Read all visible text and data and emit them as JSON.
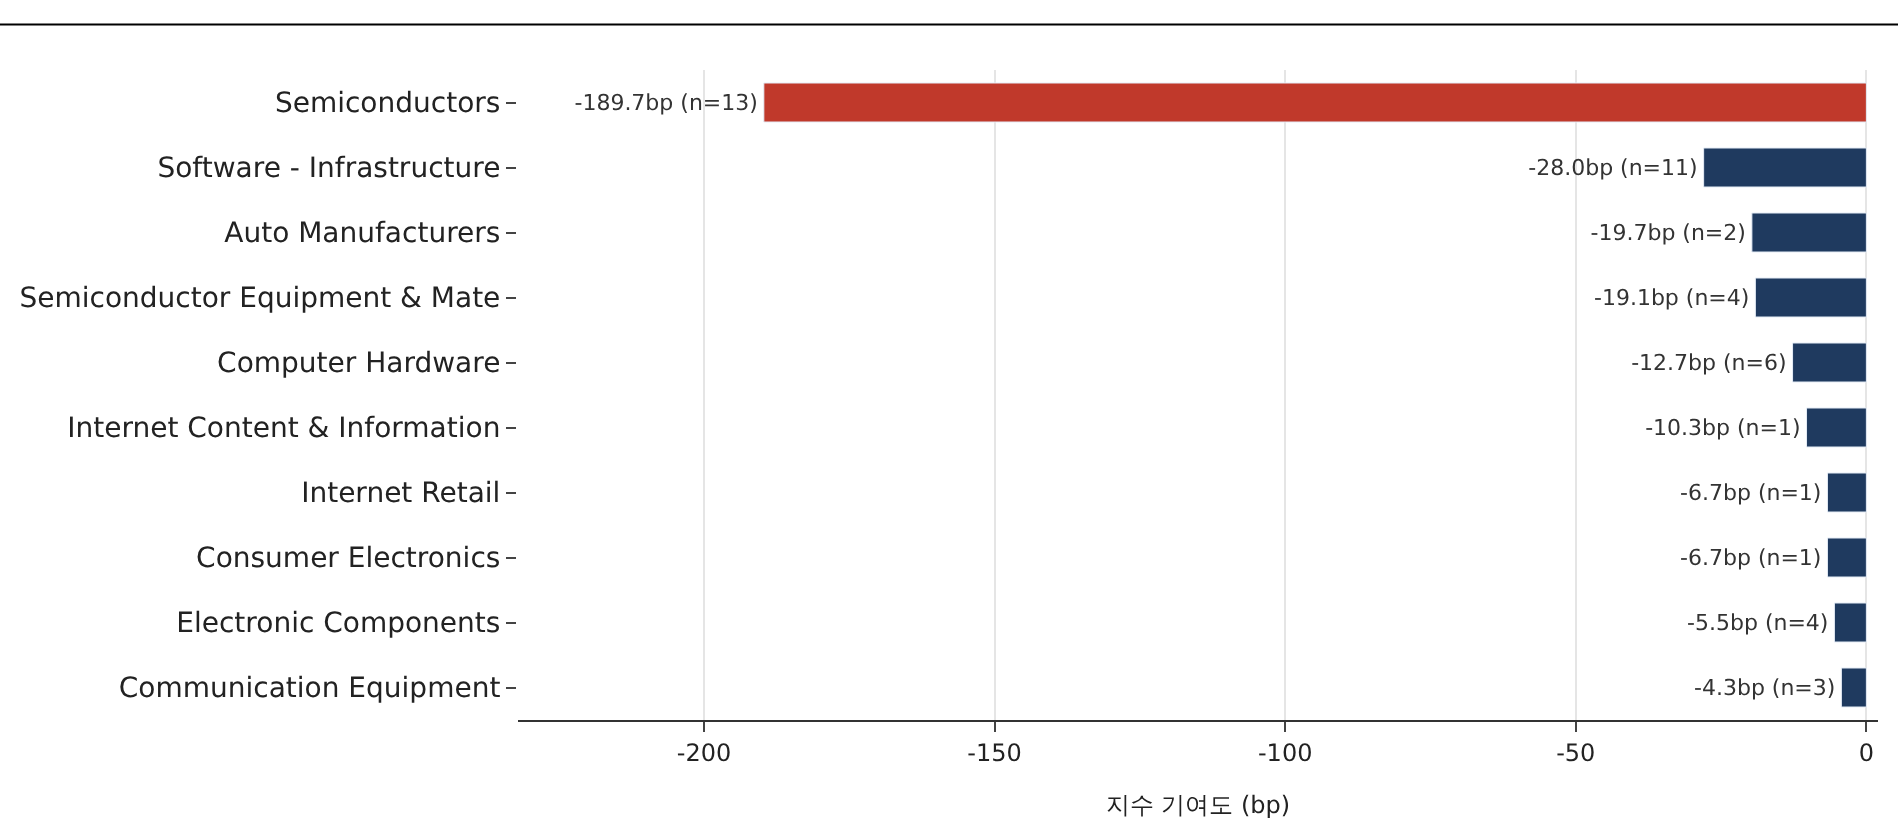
{
  "chart_data": {
    "type": "bar",
    "orientation": "horizontal",
    "xlabel": "지수 기여도 (bp)",
    "categories": [
      "Semiconductors",
      "Software - Infrastructure",
      "Auto Manufacturers",
      "Semiconductor Equipment & Mate",
      "Computer Hardware",
      "Internet Content & Information",
      "Internet Retail",
      "Consumer Electronics",
      "Electronic Components",
      "Communication Equipment"
    ],
    "values": [
      -189.7,
      -28.0,
      -19.7,
      -19.1,
      -12.7,
      -10.3,
      -6.7,
      -6.7,
      -5.5,
      -4.3
    ],
    "colors": [
      "#c0392b",
      "#1f3a5f",
      "#1f3a5f",
      "#1f3a5f",
      "#1f3a5f",
      "#1f3a5f",
      "#1f3a5f",
      "#1f3a5f",
      "#1f3a5f",
      "#1f3a5f"
    ],
    "value_labels": [
      "-189.7bp (n=13)",
      "-28.0bp (n=11)",
      "-19.7bp (n=2)",
      "-19.1bp (n=4)",
      "-12.7bp (n=6)",
      "-10.3bp (n=1)",
      "-6.7bp (n=1)",
      "-6.7bp (n=1)",
      "-5.5bp (n=4)",
      "-4.3bp (n=3)"
    ],
    "xlim": [
      -232,
      2
    ],
    "xticks": [
      -200,
      -150,
      -100,
      -50,
      0
    ],
    "grid": "x",
    "legend": false
  }
}
